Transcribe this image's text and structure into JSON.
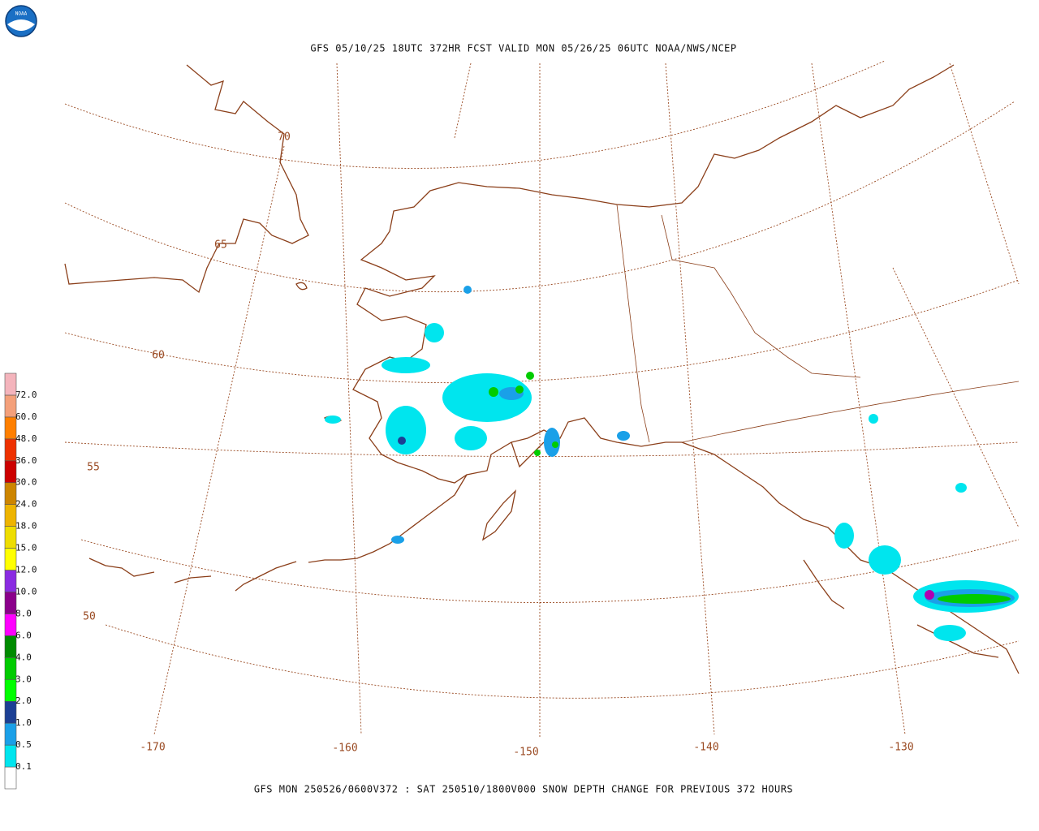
{
  "logo": {
    "text": "NOAA"
  },
  "header": {
    "title": "GFS 05/10/25 18UTC 372HR FCST VALID MON 05/26/25 06UTC NOAA/NWS/NCEP"
  },
  "footer": {
    "caption": "GFS MON 250526/0600V372 : SAT 250510/1800V000 SNOW DEPTH CHANGE FOR PREVIOUS 372 HOURS"
  },
  "graticule": {
    "latitude_labels": [
      "70",
      "65",
      "60",
      "55",
      "50"
    ],
    "longitude_labels": [
      "-170",
      "-160",
      "-150",
      "-140",
      "-130"
    ]
  },
  "legend": {
    "base_color": "#ffffff",
    "items": [
      {
        "label": "0.1",
        "color": "#00e5ee"
      },
      {
        "label": "0.5",
        "color": "#1aa0e8"
      },
      {
        "label": "1.0",
        "color": "#1c3f94"
      },
      {
        "label": "2.0",
        "color": "#00ff00"
      },
      {
        "label": "3.0",
        "color": "#00cc00"
      },
      {
        "label": "4.0",
        "color": "#008b00"
      },
      {
        "label": "6.0",
        "color": "#ff00ff"
      },
      {
        "label": "8.0",
        "color": "#8b008b"
      },
      {
        "label": "10.0",
        "color": "#8a2be2"
      },
      {
        "label": "12.0",
        "color": "#ffff00"
      },
      {
        "label": "15.0",
        "color": "#eedd00"
      },
      {
        "label": "18.0",
        "color": "#eeb400"
      },
      {
        "label": "24.0",
        "color": "#cd8500"
      },
      {
        "label": "30.0",
        "color": "#cc0000"
      },
      {
        "label": "36.0",
        "color": "#ee3000"
      },
      {
        "label": "48.0",
        "color": "#ff7f00"
      },
      {
        "label": "60.0",
        "color": "#f4a07a"
      },
      {
        "label": "72.0",
        "color": "#f4b4bc"
      }
    ]
  }
}
